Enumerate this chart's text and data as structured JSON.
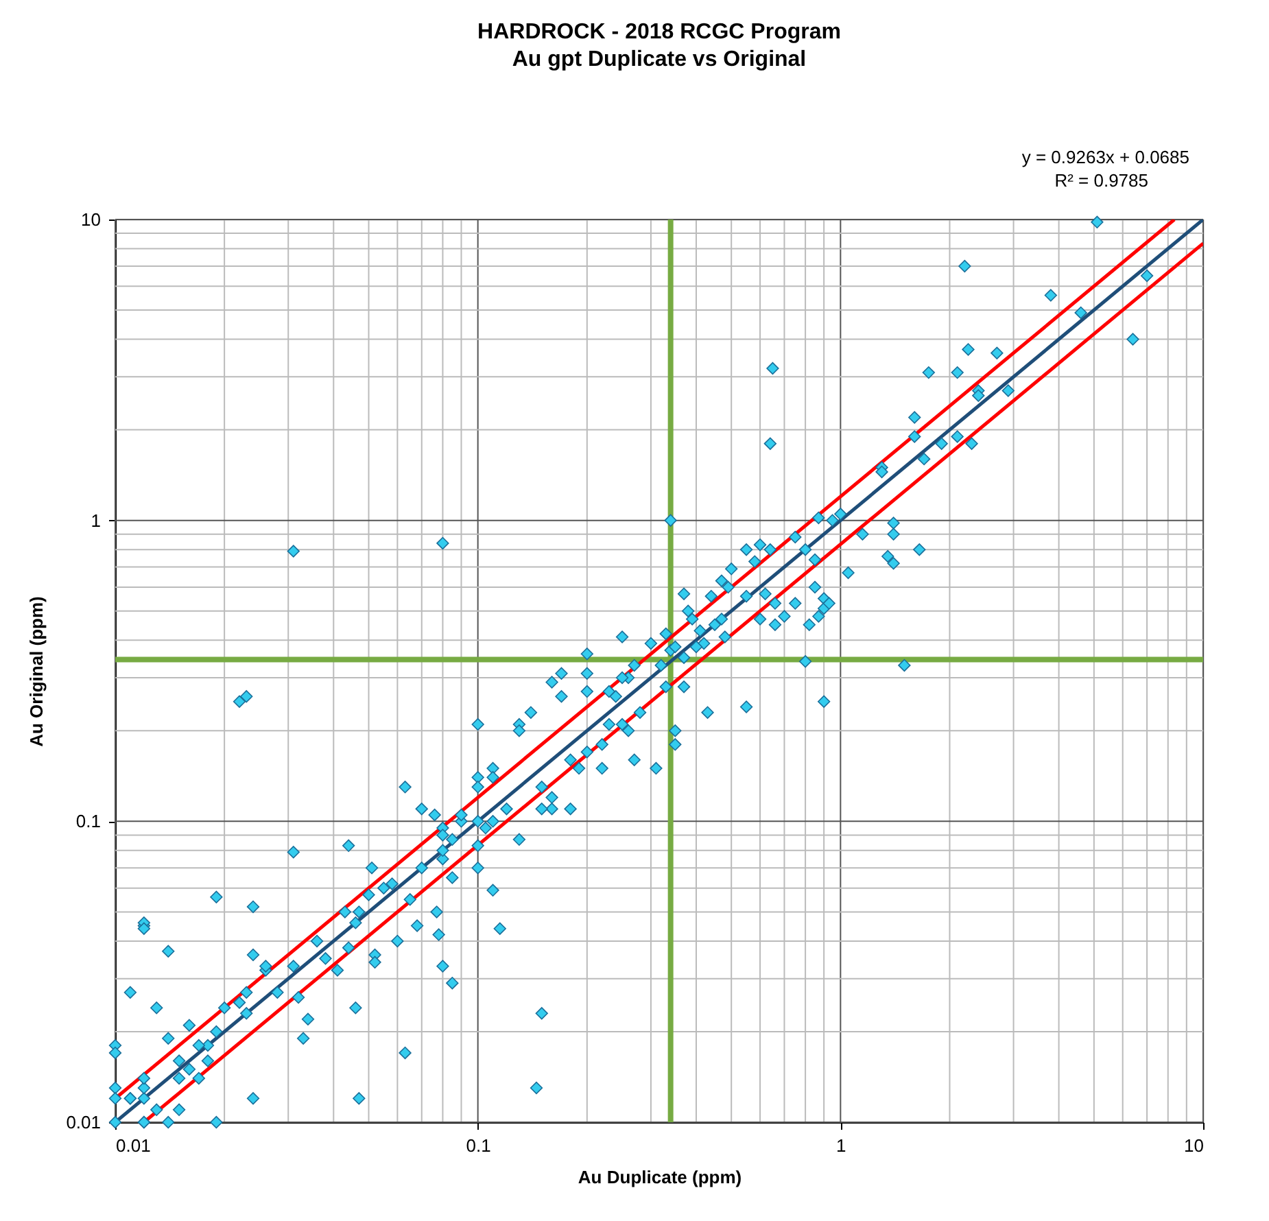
{
  "chart_data": {
    "type": "scatter",
    "title": "HARDROCK  - 2018 RCGC Program",
    "subtitle": "Au gpt Duplicate vs Original",
    "xlabel": "Au Duplicate (ppm)",
    "ylabel": "Au Original (ppm)",
    "annotations": [
      "y = 0.9263x + 0.0685",
      "R² = 0.9785"
    ],
    "log": "xy",
    "grid": true,
    "xlim": [
      0.01,
      10
    ],
    "ylim": [
      0.01,
      10
    ],
    "xticks": [
      0.01,
      {
        "value": 0.02,
        "label": null
      },
      {
        "value": 0.03,
        "label": null
      },
      {
        "value": 0.04,
        "label": null
      },
      {
        "value": 0.05,
        "label": null
      },
      {
        "value": 0.06,
        "label": null
      },
      {
        "value": 0.07,
        "label": null
      },
      {
        "value": 0.08,
        "label": null
      },
      {
        "value": 0.09,
        "label": null
      },
      0.1,
      {
        "value": 0.2,
        "label": null
      },
      {
        "value": 0.3,
        "label": null
      },
      {
        "value": 0.4,
        "label": null
      },
      {
        "value": 0.5,
        "label": null
      },
      {
        "value": 0.6,
        "label": null
      },
      {
        "value": 0.7,
        "label": null
      },
      {
        "value": 0.8,
        "label": null
      },
      {
        "value": 0.9,
        "label": null
      },
      1,
      {
        "value": 2,
        "label": null
      },
      {
        "value": 3,
        "label": null
      },
      {
        "value": 4,
        "label": null
      },
      {
        "value": 5,
        "label": null
      },
      {
        "value": 6,
        "label": null
      },
      {
        "value": 7,
        "label": null
      },
      {
        "value": 8,
        "label": null
      },
      {
        "value": 9,
        "label": null
      },
      10
    ],
    "yticks": [
      0.01,
      {
        "value": 0.02,
        "label": null
      },
      {
        "value": 0.03,
        "label": null
      },
      {
        "value": 0.04,
        "label": null
      },
      {
        "value": 0.05,
        "label": null
      },
      {
        "value": 0.06,
        "label": null
      },
      {
        "value": 0.07,
        "label": null
      },
      {
        "value": 0.08,
        "label": null
      },
      {
        "value": 0.09,
        "label": null
      },
      0.1,
      {
        "value": 0.2,
        "label": null
      },
      {
        "value": 0.3,
        "label": null
      },
      {
        "value": 0.4,
        "label": null
      },
      {
        "value": 0.5,
        "label": null
      },
      {
        "value": 0.6,
        "label": null
      },
      {
        "value": 0.7,
        "label": null
      },
      {
        "value": 0.8,
        "label": null
      },
      {
        "value": 0.9,
        "label": null
      },
      1,
      {
        "value": 2,
        "label": null
      },
      {
        "value": 3,
        "label": null
      },
      {
        "value": 4,
        "label": null
      },
      {
        "value": 5,
        "label": null
      },
      {
        "value": 6,
        "label": null
      },
      {
        "value": 7,
        "label": null
      },
      {
        "value": 8,
        "label": null
      },
      {
        "value": 9,
        "label": null
      },
      10
    ],
    "ref_lines": [
      {
        "axis": "x",
        "value": 0.34,
        "color": "#77ab43"
      },
      {
        "axis": "y",
        "value": 0.345,
        "color": "#77ab43"
      }
    ],
    "series": [
      {
        "color": "#33ccee",
        "marker": "diamond",
        "x": [
          0.031,
          0.08,
          0.022,
          0.023,
          0.34,
          0.65,
          0.64,
          2.2,
          5.1,
          6.4,
          7.0,
          3.8,
          4.6,
          2.25,
          2.7,
          2.1,
          1.75,
          2.4,
          2.4,
          2.9,
          2.3,
          2.1,
          1.9,
          1.6,
          1.6,
          1.7,
          1.3,
          1.3,
          1.4,
          1.4,
          1.65,
          1.35,
          1.4,
          1.5,
          0.95,
          1.0,
          0.87,
          1.15,
          1.05,
          0.75,
          0.8,
          0.85,
          0.85,
          0.9,
          0.9,
          0.93,
          0.75,
          0.87,
          0.82,
          0.9,
          0.8,
          0.64,
          0.6,
          0.55,
          0.58,
          0.5,
          0.49,
          0.47,
          0.62,
          0.66,
          0.6,
          0.66,
          0.7,
          0.55,
          0.45,
          0.41,
          0.48,
          0.42,
          0.4,
          0.47,
          0.39,
          0.38,
          0.37,
          0.44,
          0.55,
          0.43,
          0.35,
          0.35,
          0.37,
          0.33,
          0.34,
          0.32,
          0.33,
          0.37,
          0.35,
          0.3,
          0.25,
          0.2,
          0.27,
          0.26,
          0.25,
          0.2,
          0.23,
          0.24,
          0.28,
          0.26,
          0.23,
          0.2,
          0.17,
          0.17,
          0.16,
          0.14,
          0.13,
          0.22,
          0.31,
          0.2,
          0.25,
          0.22,
          0.27,
          0.18,
          0.19,
          0.16,
          0.15,
          0.16,
          0.18,
          0.15,
          0.13,
          0.1,
          0.13,
          0.11,
          0.12,
          0.11,
          0.1,
          0.11,
          0.1,
          0.1,
          0.105,
          0.1,
          0.1,
          0.11,
          0.115,
          0.145,
          0.15,
          0.09,
          0.085,
          0.08,
          0.09,
          0.076,
          0.07,
          0.08,
          0.08,
          0.08,
          0.07,
          0.085,
          0.077,
          0.078,
          0.08,
          0.085,
          0.063,
          0.063,
          0.055,
          0.058,
          0.065,
          0.068,
          0.06,
          0.051,
          0.05,
          0.047,
          0.046,
          0.043,
          0.044,
          0.044,
          0.041,
          0.046,
          0.047,
          0.052,
          0.052,
          0.036,
          0.038,
          0.034,
          0.033,
          0.032,
          0.031,
          0.031,
          0.028,
          0.026,
          0.026,
          0.024,
          0.024,
          0.023,
          0.022,
          0.023,
          0.024,
          0.019,
          0.02,
          0.019,
          0.018,
          0.018,
          0.019,
          0.017,
          0.016,
          0.016,
          0.017,
          0.015,
          0.014,
          0.014,
          0.013,
          0.015,
          0.015,
          0.014,
          0.012,
          0.012,
          0.012,
          0.012,
          0.012,
          0.012,
          0.011,
          0.011,
          0.011,
          0.01,
          0.01,
          0.01,
          0.01,
          0.01,
          0.012,
          0.012,
          0.013
        ],
        "values": [
          0.79,
          0.84,
          0.25,
          0.26,
          1.0,
          3.2,
          1.8,
          7.0,
          9.8,
          4.0,
          6.5,
          5.6,
          4.9,
          3.7,
          3.6,
          3.1,
          3.1,
          2.7,
          2.6,
          2.7,
          1.8,
          1.9,
          1.8,
          2.2,
          1.9,
          1.6,
          1.5,
          1.45,
          0.98,
          0.9,
          0.8,
          0.76,
          0.72,
          0.33,
          1.0,
          1.05,
          1.02,
          0.9,
          0.67,
          0.88,
          0.8,
          0.74,
          0.6,
          0.55,
          0.51,
          0.53,
          0.53,
          0.48,
          0.45,
          0.25,
          0.34,
          0.8,
          0.83,
          0.8,
          0.73,
          0.69,
          0.6,
          0.63,
          0.57,
          0.53,
          0.47,
          0.45,
          0.48,
          0.56,
          0.45,
          0.43,
          0.41,
          0.39,
          0.38,
          0.47,
          0.47,
          0.5,
          0.57,
          0.56,
          0.24,
          0.23,
          0.2,
          0.18,
          0.28,
          0.42,
          0.37,
          0.33,
          0.28,
          0.35,
          0.38,
          0.39,
          0.41,
          0.36,
          0.33,
          0.3,
          0.3,
          0.31,
          0.27,
          0.26,
          0.23,
          0.2,
          0.21,
          0.27,
          0.26,
          0.31,
          0.29,
          0.23,
          0.21,
          0.18,
          0.15,
          0.17,
          0.21,
          0.15,
          0.16,
          0.16,
          0.15,
          0.12,
          0.13,
          0.11,
          0.11,
          0.11,
          0.087,
          0.21,
          0.2,
          0.15,
          0.11,
          0.1,
          0.14,
          0.14,
          0.13,
          0.1,
          0.095,
          0.083,
          0.07,
          0.059,
          0.044,
          0.013,
          0.023,
          0.1,
          0.087,
          0.095,
          0.105,
          0.105,
          0.11,
          0.09,
          0.075,
          0.08,
          0.07,
          0.065,
          0.05,
          0.042,
          0.033,
          0.029,
          0.13,
          0.017,
          0.06,
          0.062,
          0.055,
          0.045,
          0.04,
          0.07,
          0.057,
          0.05,
          0.046,
          0.05,
          0.083,
          0.038,
          0.032,
          0.024,
          0.012,
          0.036,
          0.034,
          0.04,
          0.035,
          0.022,
          0.019,
          0.026,
          0.079,
          0.033,
          0.027,
          0.032,
          0.033,
          0.052,
          0.036,
          0.027,
          0.025,
          0.023,
          0.012,
          0.056,
          0.024,
          0.02,
          0.018,
          0.016,
          0.01,
          0.018,
          0.021,
          0.015,
          0.014,
          0.016,
          0.019,
          0.037,
          0.024,
          0.014,
          0.011,
          0.01,
          0.012,
          0.045,
          0.046,
          0.044,
          0.013,
          0.014,
          0.027,
          0.012,
          0.012,
          0.018,
          0.017,
          0.013,
          0.012,
          0.01,
          0.01,
          0.01,
          0.011
        ]
      },
      {
        "type": "line",
        "color": "#1f4e79",
        "marker": "none",
        "line_style": "solid",
        "x": [
          0.01,
          10
        ],
        "values": [
          0.01,
          10
        ]
      },
      {
        "type": "line",
        "color": "#ff0000",
        "marker": "none",
        "line_style": "solid",
        "x": [
          0.01,
          8.33
        ],
        "values": [
          0.012,
          10
        ]
      },
      {
        "type": "line",
        "color": "#ff0000",
        "marker": "none",
        "line_style": "solid",
        "x": [
          0.012,
          10
        ],
        "values": [
          0.01,
          8.33
        ]
      }
    ]
  }
}
